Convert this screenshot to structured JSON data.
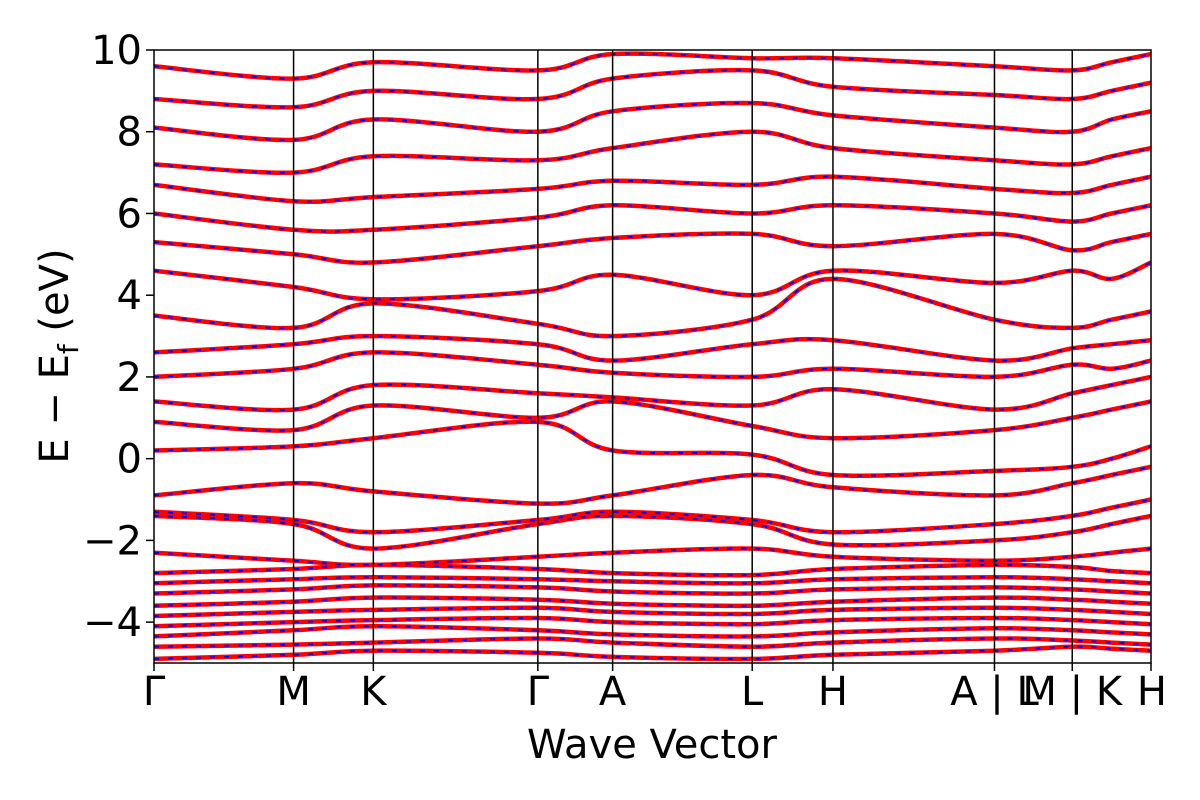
{
  "chart_data": {
    "type": "line",
    "title": "",
    "xlabel": "Wave Vector",
    "ylabel_parts": {
      "main": "E − E",
      "sub": "f",
      "unit": " (eV)"
    },
    "ylim": [
      -5,
      10
    ],
    "yticks": [
      -4,
      -2,
      0,
      2,
      4,
      6,
      8,
      10
    ],
    "ytick_labels": [
      "−4",
      "−2",
      "0",
      "2",
      "4",
      "6",
      "8",
      "10"
    ],
    "kpath_ticks": [
      {
        "label": "Γ",
        "pos": 0.0
      },
      {
        "label": "M",
        "pos": 0.14
      },
      {
        "label": "K",
        "pos": 0.22
      },
      {
        "label": "Γ",
        "pos": 0.385
      },
      {
        "label": "A",
        "pos": 0.46
      },
      {
        "label": "L",
        "pos": 0.6
      },
      {
        "label": "H",
        "pos": 0.681
      },
      {
        "label": "A | L",
        "pos": 0.843
      },
      {
        "label": "M | K",
        "pos": 0.921
      },
      {
        "label": "H",
        "pos": 1.0
      }
    ],
    "series": [
      {
        "color": "#ff0000",
        "style": "solid"
      },
      {
        "color": "#0000ff",
        "style": "dashed"
      }
    ],
    "bands": [
      [
        -4.9,
        -4.8,
        -4.7,
        -4.75,
        -4.85,
        -4.9,
        -4.8,
        -4.7,
        -4.6,
        -4.65,
        -4.7
      ],
      [
        -4.6,
        -4.55,
        -4.5,
        -4.4,
        -4.5,
        -4.6,
        -4.5,
        -4.4,
        -4.45,
        -4.5,
        -4.55
      ],
      [
        -4.35,
        -4.2,
        -4.1,
        -4.2,
        -4.3,
        -4.35,
        -4.25,
        -4.15,
        -4.2,
        -4.25,
        -4.3
      ],
      [
        -4.1,
        -4.0,
        -3.95,
        -3.9,
        -4.0,
        -4.05,
        -3.95,
        -3.9,
        -3.95,
        -4.0,
        -4.05
      ],
      [
        -3.85,
        -3.75,
        -3.7,
        -3.65,
        -3.75,
        -3.8,
        -3.7,
        -3.65,
        -3.7,
        -3.75,
        -3.8
      ],
      [
        -3.6,
        -3.5,
        -3.4,
        -3.45,
        -3.55,
        -3.6,
        -3.5,
        -3.4,
        -3.45,
        -3.5,
        -3.55
      ],
      [
        -3.3,
        -3.2,
        -3.1,
        -3.15,
        -3.25,
        -3.3,
        -3.2,
        -3.15,
        -3.2,
        -3.25,
        -3.3
      ],
      [
        -3.05,
        -2.95,
        -2.9,
        -2.95,
        -3.0,
        -3.05,
        -2.95,
        -2.9,
        -2.95,
        -3.0,
        -3.05
      ],
      [
        -2.8,
        -2.7,
        -2.6,
        -2.7,
        -2.8,
        -2.85,
        -2.7,
        -2.6,
        -2.65,
        -2.75,
        -2.8
      ],
      [
        -2.3,
        -2.5,
        -2.6,
        -2.4,
        -2.3,
        -2.2,
        -2.4,
        -2.5,
        -2.4,
        -2.3,
        -2.2
      ],
      [
        -1.4,
        -1.6,
        -2.2,
        -1.6,
        -1.4,
        -1.6,
        -2.1,
        -2.0,
        -1.8,
        -1.6,
        -1.4
      ],
      [
        -1.3,
        -1.5,
        -1.8,
        -1.5,
        -1.3,
        -1.5,
        -1.8,
        -1.6,
        -1.4,
        -1.2,
        -1.0
      ],
      [
        -0.9,
        -0.6,
        -0.8,
        -1.1,
        -0.9,
        -0.4,
        -0.7,
        -0.9,
        -0.6,
        -0.4,
        -0.2
      ],
      [
        0.2,
        0.3,
        0.5,
        0.9,
        0.2,
        0.1,
        -0.4,
        -0.3,
        -0.2,
        0.0,
        0.3
      ],
      [
        0.9,
        0.7,
        1.3,
        1.0,
        1.4,
        0.8,
        0.5,
        0.7,
        1.0,
        1.2,
        1.4
      ],
      [
        1.4,
        1.2,
        1.8,
        1.6,
        1.5,
        1.3,
        1.7,
        1.2,
        1.6,
        1.8,
        2.0
      ],
      [
        2.0,
        2.2,
        2.6,
        2.3,
        2.1,
        2.0,
        2.2,
        2.0,
        2.3,
        2.2,
        2.4
      ],
      [
        2.6,
        2.8,
        3.0,
        2.8,
        2.4,
        2.8,
        2.9,
        2.4,
        2.7,
        2.8,
        2.9
      ],
      [
        3.5,
        3.2,
        3.8,
        3.3,
        3.0,
        3.4,
        4.4,
        3.4,
        3.2,
        3.4,
        3.6
      ],
      [
        4.6,
        4.2,
        3.9,
        4.1,
        4.5,
        4.0,
        4.6,
        4.3,
        4.6,
        4.4,
        4.8
      ],
      [
        5.3,
        5.0,
        4.8,
        5.2,
        5.4,
        5.5,
        5.2,
        5.5,
        5.1,
        5.3,
        5.5
      ],
      [
        6.0,
        5.6,
        5.6,
        5.9,
        6.2,
        6.0,
        6.2,
        6.0,
        5.8,
        6.0,
        6.2
      ],
      [
        6.7,
        6.3,
        6.4,
        6.6,
        6.8,
        6.7,
        6.9,
        6.6,
        6.5,
        6.7,
        6.9
      ],
      [
        7.2,
        7.0,
        7.4,
        7.3,
        7.6,
        8.0,
        7.6,
        7.3,
        7.2,
        7.4,
        7.6
      ],
      [
        8.1,
        7.8,
        8.3,
        8.0,
        8.5,
        8.7,
        8.4,
        8.1,
        8.0,
        8.3,
        8.5
      ],
      [
        8.8,
        8.6,
        9.0,
        8.8,
        9.3,
        9.5,
        9.1,
        8.9,
        8.8,
        9.0,
        9.2
      ],
      [
        9.6,
        9.3,
        9.7,
        9.5,
        9.9,
        9.8,
        9.8,
        9.6,
        9.5,
        9.7,
        9.9
      ]
    ]
  }
}
